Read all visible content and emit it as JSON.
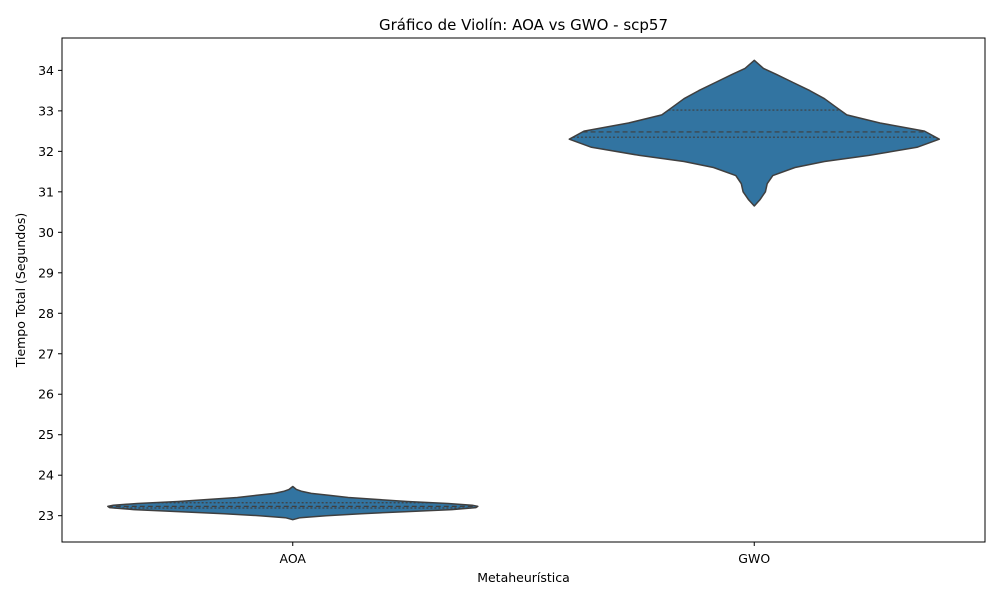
{
  "chart_data": {
    "type": "violin",
    "title": "Gráfico de Violín: AOA vs GWO - scp57",
    "xlabel": "Metaheurística",
    "ylabel": "Tiempo Total (Segundos)",
    "categories": [
      "AOA",
      "GWO"
    ],
    "ylim": [
      22.35,
      34.8
    ],
    "yticks": [
      23,
      24,
      25,
      26,
      27,
      28,
      29,
      30,
      31,
      32,
      33,
      34
    ],
    "grid": false,
    "fill_color": "#3274a1",
    "edge_color": "#3f3f3f",
    "violins": [
      {
        "category": "AOA",
        "min": 22.9,
        "max": 23.72,
        "q1": 23.19,
        "median": 23.23,
        "q3": 23.32,
        "density_profile": [
          [
            22.9,
            0.0
          ],
          [
            22.95,
            0.04
          ],
          [
            23.0,
            0.18
          ],
          [
            23.05,
            0.37
          ],
          [
            23.1,
            0.62
          ],
          [
            23.15,
            0.86
          ],
          [
            23.2,
            0.99
          ],
          [
            23.23,
            1.0
          ],
          [
            23.26,
            0.97
          ],
          [
            23.3,
            0.84
          ],
          [
            23.35,
            0.62
          ],
          [
            23.4,
            0.46
          ],
          [
            23.45,
            0.3
          ],
          [
            23.5,
            0.2
          ],
          [
            23.55,
            0.1
          ],
          [
            23.6,
            0.05
          ],
          [
            23.65,
            0.02
          ],
          [
            23.72,
            0.0
          ]
        ]
      },
      {
        "category": "GWO",
        "min": 30.65,
        "max": 34.25,
        "q1": 32.35,
        "median": 32.48,
        "q3": 33.02,
        "density_profile": [
          [
            30.65,
            0.0
          ],
          [
            30.8,
            0.03
          ],
          [
            31.0,
            0.06
          ],
          [
            31.2,
            0.07
          ],
          [
            31.4,
            0.1
          ],
          [
            31.6,
            0.22
          ],
          [
            31.75,
            0.38
          ],
          [
            31.9,
            0.62
          ],
          [
            32.1,
            0.88
          ],
          [
            32.3,
            1.0
          ],
          [
            32.5,
            0.92
          ],
          [
            32.7,
            0.68
          ],
          [
            32.9,
            0.5
          ],
          [
            33.1,
            0.44
          ],
          [
            33.3,
            0.38
          ],
          [
            33.5,
            0.3
          ],
          [
            33.7,
            0.21
          ],
          [
            33.9,
            0.12
          ],
          [
            34.05,
            0.05
          ],
          [
            34.25,
            0.0
          ]
        ]
      }
    ]
  }
}
